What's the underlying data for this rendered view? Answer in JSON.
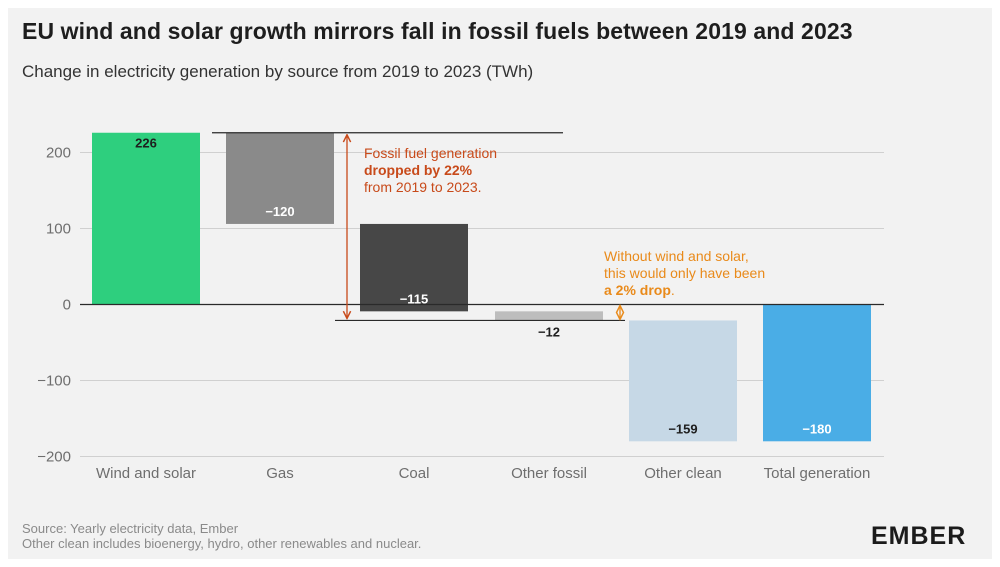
{
  "header": {
    "title": "EU wind and solar growth mirrors fall in fossil fuels between 2019 and 2023",
    "subtitle": "Change in electricity generation by source from 2019 to 2023 (TWh)"
  },
  "footer": {
    "source": "Source: Yearly electricity data, Ember",
    "note": "Other clean includes bioenergy, hydro, other renewables and nuclear.",
    "logo": "EMBER"
  },
  "chart_data": {
    "type": "bar",
    "variant": "waterfall",
    "categories": [
      "Wind and solar",
      "Gas",
      "Coal",
      "Other fossil",
      "Other clean",
      "Total generation"
    ],
    "values": [
      226,
      -120,
      -115,
      -12,
      -159,
      -180
    ],
    "value_labels": [
      "226",
      "−120",
      "−115",
      "−12",
      "−159",
      "−180"
    ],
    "bar_colors": [
      "#2ecf7e",
      "#8a8a8a",
      "#474747",
      "#bdbdbd",
      "#c6d8e6",
      "#4aade6"
    ],
    "bar_label_colors": [
      "#1e1e1e",
      "#ffffff",
      "#ffffff",
      "#1e1e1e",
      "#1e1e1e",
      "#ffffff"
    ],
    "yticks": [
      200,
      100,
      0,
      -100,
      -200
    ],
    "ytick_labels": [
      "200",
      "100",
      "0",
      "−100",
      "−200"
    ],
    "ylim": [
      -200,
      226
    ],
    "grid": true,
    "annotations": [
      {
        "lines": [
          "Fossil fuel generation",
          "dropped by 22%",
          "from 2019 to 2023."
        ],
        "bold_line": 1,
        "color": "#c84a1a"
      },
      {
        "lines": [
          "Without wind and solar,",
          "this would only have been",
          "a 2% drop."
        ],
        "bold_text": "a 2% drop",
        "color": "#e98a1a"
      }
    ]
  }
}
